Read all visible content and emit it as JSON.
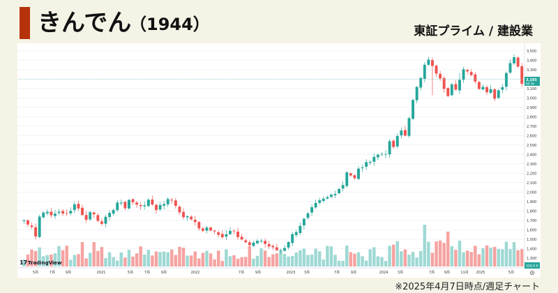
{
  "header": {
    "company_name": "きんでん",
    "stock_code": "（1944）",
    "market_sector": "東証プライム / 建設業",
    "accent_color": "#b5320b"
  },
  "footnote": "※2025年4月7日時点/週足チャート",
  "chart_data": {
    "type": "candlestick",
    "period": "weekly",
    "y_axis": {
      "ticks": [
        1300,
        1400,
        1500,
        1600,
        1700,
        1800,
        1900,
        2000,
        2100,
        2200,
        2300,
        2400,
        2500,
        2600,
        2700,
        2800,
        2900,
        3000,
        3100,
        3200,
        3300,
        3400,
        3500
      ],
      "tick_labels": [
        "1,300",
        "1,400",
        "1,500",
        "1,600",
        "1,700",
        "1,800",
        "1,900",
        "2,000",
        "2,100",
        "2,200",
        "2,300",
        "2,400",
        "2,500",
        "2,600",
        "2,700",
        "2,800",
        "2,900",
        "3,000",
        "3,100",
        "3,200",
        "3,300",
        "3,400",
        "3,500"
      ],
      "ylim": [
        1210,
        3550
      ]
    },
    "x_axis": {
      "labels": [
        "5月",
        "7月",
        "9月",
        "2021",
        "5月",
        "7月",
        "9月",
        "2022",
        "7月",
        "9月",
        "2023",
        "3月",
        "7月",
        "9月",
        "2024",
        "3月",
        "7月",
        "9月",
        "11月",
        "2025",
        "5月"
      ]
    },
    "last_price": {
      "value": "3,165",
      "sub": "6d 3h"
    },
    "reference_line": 3200,
    "volume_label": "328.9 K",
    "watermark": "TradingView",
    "colors": {
      "up": "#26a69a",
      "down": "#ef5350",
      "up_volume": "#9fd9d3",
      "down_volume": "#f5a3a1"
    },
    "key_closes": [
      [
        1.0,
        1700
      ],
      [
        3.0,
        1640
      ],
      [
        4.0,
        1530
      ],
      [
        5.0,
        1740
      ],
      [
        6.0,
        1800
      ],
      [
        8.0,
        1750
      ],
      [
        10.0,
        1800
      ],
      [
        11.5,
        1740
      ],
      [
        12.5,
        1790
      ],
      [
        14.0,
        1870
      ],
      [
        15.5,
        1820
      ],
      [
        16.5,
        1680
      ],
      [
        17.5,
        1760
      ],
      [
        18.5,
        1810
      ],
      [
        19.5,
        1720
      ],
      [
        21.0,
        1680
      ],
      [
        23.0,
        1760
      ],
      [
        25.0,
        1890
      ],
      [
        26.0,
        1870
      ],
      [
        27.0,
        1840
      ],
      [
        28.0,
        1920
      ],
      [
        30.0,
        1860
      ],
      [
        31.5,
        1860
      ],
      [
        33.0,
        1900
      ],
      [
        34.0,
        1870
      ],
      [
        35.0,
        1820
      ],
      [
        36.0,
        1860
      ],
      [
        37.0,
        1880
      ],
      [
        38.0,
        1940
      ],
      [
        39.0,
        1900
      ],
      [
        40.0,
        1860
      ],
      [
        41.0,
        1790
      ],
      [
        42.5,
        1730
      ],
      [
        44.0,
        1720
      ],
      [
        45.5,
        1640
      ],
      [
        46.5,
        1590
      ],
      [
        48.0,
        1620
      ],
      [
        50.5,
        1560
      ],
      [
        51.5,
        1520
      ],
      [
        52.5,
        1550
      ],
      [
        54.0,
        1590
      ],
      [
        55.0,
        1600
      ],
      [
        56.0,
        1540
      ],
      [
        57.5,
        1480
      ],
      [
        58.5,
        1440
      ],
      [
        59.5,
        1420
      ],
      [
        60.5,
        1470
      ],
      [
        61.5,
        1510
      ],
      [
        62.5,
        1460
      ],
      [
        63.5,
        1440
      ],
      [
        64.5,
        1410
      ],
      [
        65.5,
        1390
      ],
      [
        66.5,
        1380
      ],
      [
        67.5,
        1390
      ],
      [
        68.5,
        1440
      ],
      [
        69.5,
        1520
      ],
      [
        71.0,
        1590
      ],
      [
        72.5,
        1680
      ],
      [
        74.0,
        1760
      ],
      [
        75.5,
        1850
      ],
      [
        77.0,
        1900
      ],
      [
        79.0,
        1940
      ],
      [
        81.0,
        2000
      ],
      [
        83.0,
        2080
      ],
      [
        84.0,
        2220
      ],
      [
        85.0,
        2180
      ],
      [
        86.0,
        2140
      ],
      [
        87.0,
        2240
      ],
      [
        89.0,
        2300
      ],
      [
        91.0,
        2380
      ],
      [
        92.5,
        2400
      ],
      [
        94.0,
        2420
      ],
      [
        95.0,
        2520
      ],
      [
        96.0,
        2480
      ],
      [
        97.0,
        2580
      ],
      [
        98.0,
        2650
      ],
      [
        99.0,
        2600
      ],
      [
        100.5,
        2900
      ],
      [
        102.0,
        3100
      ],
      [
        103.0,
        3220
      ],
      [
        104.0,
        3370
      ],
      [
        105.0,
        3420
      ],
      [
        106.0,
        3330
      ],
      [
        107.0,
        3250
      ],
      [
        108.0,
        3200
      ],
      [
        109.0,
        3080
      ],
      [
        110.0,
        3030
      ],
      [
        111.0,
        3130
      ],
      [
        112.0,
        3100
      ],
      [
        113.0,
        3210
      ],
      [
        114.0,
        3320
      ],
      [
        115.0,
        3300
      ],
      [
        116.0,
        3240
      ],
      [
        117.0,
        3160
      ],
      [
        118.0,
        3080
      ],
      [
        119.0,
        3130
      ],
      [
        120.0,
        3060
      ],
      [
        121.0,
        3110
      ],
      [
        122.0,
        3000
      ],
      [
        123.0,
        3080
      ],
      [
        124.0,
        3130
      ],
      [
        125.0,
        3270
      ],
      [
        126.0,
        3380
      ],
      [
        127.0,
        3440
      ],
      [
        128.0,
        3320
      ],
      [
        128.5,
        3165
      ]
    ]
  }
}
